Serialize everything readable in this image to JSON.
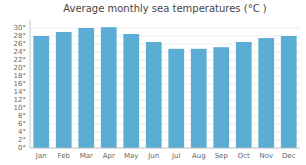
{
  "chart_data": {
    "type": "bar",
    "title": "Average monthly sea temperatures (°C )",
    "categories": [
      "Jan",
      "Feb",
      "Mar",
      "Apr",
      "May",
      "Jun",
      "Jul",
      "Aug",
      "Sep",
      "Oct",
      "Nov",
      "Dec"
    ],
    "values": [
      28.0,
      29.0,
      30.0,
      30.2,
      28.5,
      26.5,
      24.8,
      24.8,
      25.2,
      26.5,
      27.5,
      28.0
    ],
    "color": "#5badd4",
    "ylim": [
      0,
      32
    ],
    "yticks": [
      {
        "value": 0,
        "label": "0°"
      },
      {
        "value": 2,
        "label": "2°"
      },
      {
        "value": 4,
        "label": "4°"
      },
      {
        "value": 6,
        "label": "6°"
      },
      {
        "value": 8,
        "label": "8°"
      },
      {
        "value": 10,
        "label": "10°"
      },
      {
        "value": 12,
        "label": "12°"
      },
      {
        "value": 14,
        "label": "14°"
      },
      {
        "value": 16,
        "label": "16°"
      },
      {
        "value": 18,
        "label": "18°"
      },
      {
        "value": 20,
        "label": "20°"
      },
      {
        "value": 22,
        "label": "22°"
      },
      {
        "value": 24,
        "label": "24°"
      },
      {
        "value": 26,
        "label": "26°"
      },
      {
        "value": 28,
        "label": "28°"
      },
      {
        "value": 30,
        "label": "30°"
      }
    ],
    "grid": true
  }
}
